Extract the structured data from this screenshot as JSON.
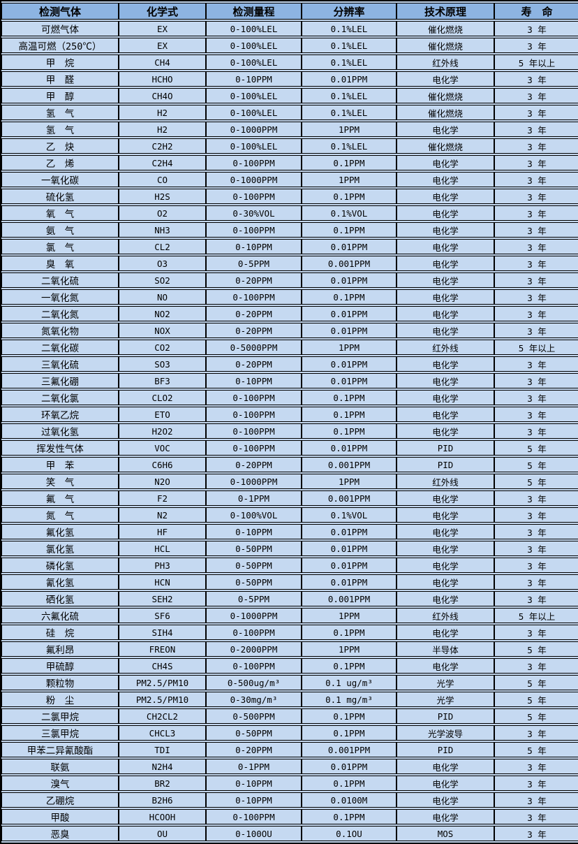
{
  "colors": {
    "header_bg": "#8DB4E2",
    "row_bg": "#C5D9F1",
    "border": "#000000",
    "text": "#000000"
  },
  "table": {
    "columns": [
      {
        "key": "gas",
        "label": "检测气体"
      },
      {
        "key": "formula",
        "label": "化学式"
      },
      {
        "key": "range",
        "label": "检测量程"
      },
      {
        "key": "resolution",
        "label": "分辨率"
      },
      {
        "key": "principle",
        "label": "技术原理"
      },
      {
        "key": "lifespan",
        "label": "寿　命"
      }
    ],
    "rows": [
      [
        "可燃气体",
        "EX",
        "0-100%LEL",
        "0.1%LEL",
        "催化燃烧",
        "3 年"
      ],
      [
        "高温可燃（250℃）",
        "EX",
        "0-100%LEL",
        "0.1%LEL",
        "催化燃烧",
        "3 年"
      ],
      [
        "甲　烷",
        "CH4",
        "0-100%LEL",
        "0.1%LEL",
        "红外线",
        "5 年以上"
      ],
      [
        "甲　醛",
        "HCHO",
        "0-10PPM",
        "0.01PPM",
        "电化学",
        "3 年"
      ],
      [
        "甲　醇",
        "CH4O",
        "0-100%LEL",
        "0.1%LEL",
        "催化燃烧",
        "3 年"
      ],
      [
        "氢　气",
        "H2",
        "0-100%LEL",
        "0.1%LEL",
        "催化燃烧",
        "3 年"
      ],
      [
        "氢　气",
        "H2",
        "0-1000PPM",
        "1PPM",
        "电化学",
        "3 年"
      ],
      [
        "乙　炔",
        "C2H2",
        "0-100%LEL",
        "0.1%LEL",
        "催化燃烧",
        "3 年"
      ],
      [
        "乙　烯",
        "C2H4",
        "0-100PPM",
        "0.1PPM",
        "电化学",
        "3 年"
      ],
      [
        "一氧化碳",
        "CO",
        "0-1000PPM",
        "1PPM",
        "电化学",
        "3 年"
      ],
      [
        "硫化氢",
        "H2S",
        "0-100PPM",
        "0.1PPM",
        "电化学",
        "3 年"
      ],
      [
        "氧　气",
        "O2",
        "0-30%VOL",
        "0.1%VOL",
        "电化学",
        "3 年"
      ],
      [
        "氨　气",
        "NH3",
        "0-100PPM",
        "0.1PPM",
        "电化学",
        "3 年"
      ],
      [
        "氯　气",
        "CL2",
        "0-10PPM",
        "0.01PPM",
        "电化学",
        "3 年"
      ],
      [
        "臭　氧",
        "O3",
        "0-5PPM",
        "0.001PPM",
        "电化学",
        "3 年"
      ],
      [
        "二氧化硫",
        "SO2",
        "0-20PPM",
        "0.01PPM",
        "电化学",
        "3 年"
      ],
      [
        "一氧化氮",
        "NO",
        "0-100PPM",
        "0.1PPM",
        "电化学",
        "3 年"
      ],
      [
        "二氧化氮",
        "NO2",
        "0-20PPM",
        "0.01PPM",
        "电化学",
        "3 年"
      ],
      [
        "氮氧化物",
        "NOX",
        "0-20PPM",
        "0.01PPM",
        "电化学",
        "3 年"
      ],
      [
        "二氧化碳",
        "CO2",
        "0-5000PPM",
        "1PPM",
        "红外线",
        "5 年以上"
      ],
      [
        "三氧化硫",
        "SO3",
        "0-20PPM",
        "0.01PPM",
        "电化学",
        "3 年"
      ],
      [
        "三氟化硼",
        "BF3",
        "0-10PPM",
        "0.01PPM",
        "电化学",
        "3 年"
      ],
      [
        "二氧化氯",
        "CLO2",
        "0-100PPM",
        "0.1PPM",
        "电化学",
        "3 年"
      ],
      [
        "环氧乙烷",
        "ETO",
        "0-100PPM",
        "0.1PPM",
        "电化学",
        "3 年"
      ],
      [
        "过氧化氢",
        "H2O2",
        "0-100PPM",
        "0.1PPM",
        "电化学",
        "3 年"
      ],
      [
        "挥发性气体",
        "VOC",
        "0-100PPM",
        "0.01PPM",
        "PID",
        "5 年"
      ],
      [
        "甲　苯",
        "C6H6",
        "0-20PPM",
        "0.001PPM",
        "PID",
        "5 年"
      ],
      [
        "笑　气",
        "N2O",
        "0-1000PPM",
        "1PPM",
        "红外线",
        "5 年"
      ],
      [
        "氟　气",
        "F2",
        "0-1PPM",
        "0.001PPM",
        "电化学",
        "3 年"
      ],
      [
        "氮　气",
        "N2",
        "0-100%VOL",
        "0.1%VOL",
        "电化学",
        "3 年"
      ],
      [
        "氟化氢",
        "HF",
        "0-10PPM",
        "0.01PPM",
        "电化学",
        "3 年"
      ],
      [
        "氯化氢",
        "HCL",
        "0-50PPM",
        "0.01PPM",
        "电化学",
        "3 年"
      ],
      [
        "磷化氢",
        "PH3",
        "0-50PPM",
        "0.01PPM",
        "电化学",
        "3 年"
      ],
      [
        "氰化氢",
        "HCN",
        "0-50PPM",
        "0.01PPM",
        "电化学",
        "3 年"
      ],
      [
        "硒化氢",
        "SEH2",
        "0-5PPM",
        "0.001PPM",
        "电化学",
        "3 年"
      ],
      [
        "六氟化硫",
        "SF6",
        "0-1000PPM",
        "1PPM",
        "红外线",
        "5 年以上"
      ],
      [
        "硅　烷",
        "SIH4",
        "0-100PPM",
        "0.1PPM",
        "电化学",
        "3 年"
      ],
      [
        "氟利昂",
        "FREON",
        "0-2000PPM",
        "1PPM",
        "半导体",
        "5 年"
      ],
      [
        "甲硫醇",
        "CH4S",
        "0-100PPM",
        "0.1PPM",
        "电化学",
        "3 年"
      ],
      [
        "颗粒物",
        "PM2.5/PM10",
        "0-500ug/m³",
        "0.1 ug/m³",
        "光学",
        "5 年"
      ],
      [
        "粉　尘",
        "PM2.5/PM10",
        "0-30mg/m³",
        "0.1 mg/m³",
        "光学",
        "5 年"
      ],
      [
        "二氯甲烷",
        "CH2CL2",
        "0-500PPM",
        "0.1PPM",
        "PID",
        "5 年"
      ],
      [
        "三氯甲烷",
        "CHCL3",
        "0-50PPM",
        "0.1PPM",
        "光学波导",
        "3 年"
      ],
      [
        "甲苯二异氰酸酯",
        "TDI",
        "0-20PPM",
        "0.001PPM",
        "PID",
        "5 年"
      ],
      [
        "联氨",
        "N2H4",
        "0-1PPM",
        "0.01PPM",
        "电化学",
        "3 年"
      ],
      [
        "溴气",
        "BR2",
        "0-10PPM",
        "0.1PPM",
        "电化学",
        "3 年"
      ],
      [
        "乙硼烷",
        "B2H6",
        "0-10PPM",
        "0.0100M",
        "电化学",
        "3 年"
      ],
      [
        "甲酸",
        "HCOOH",
        "0-100PPM",
        "0.1PPM",
        "电化学",
        "3 年"
      ],
      [
        "恶臭",
        "OU",
        "0-100OU",
        "0.1OU",
        "MOS",
        "3 年"
      ]
    ]
  }
}
